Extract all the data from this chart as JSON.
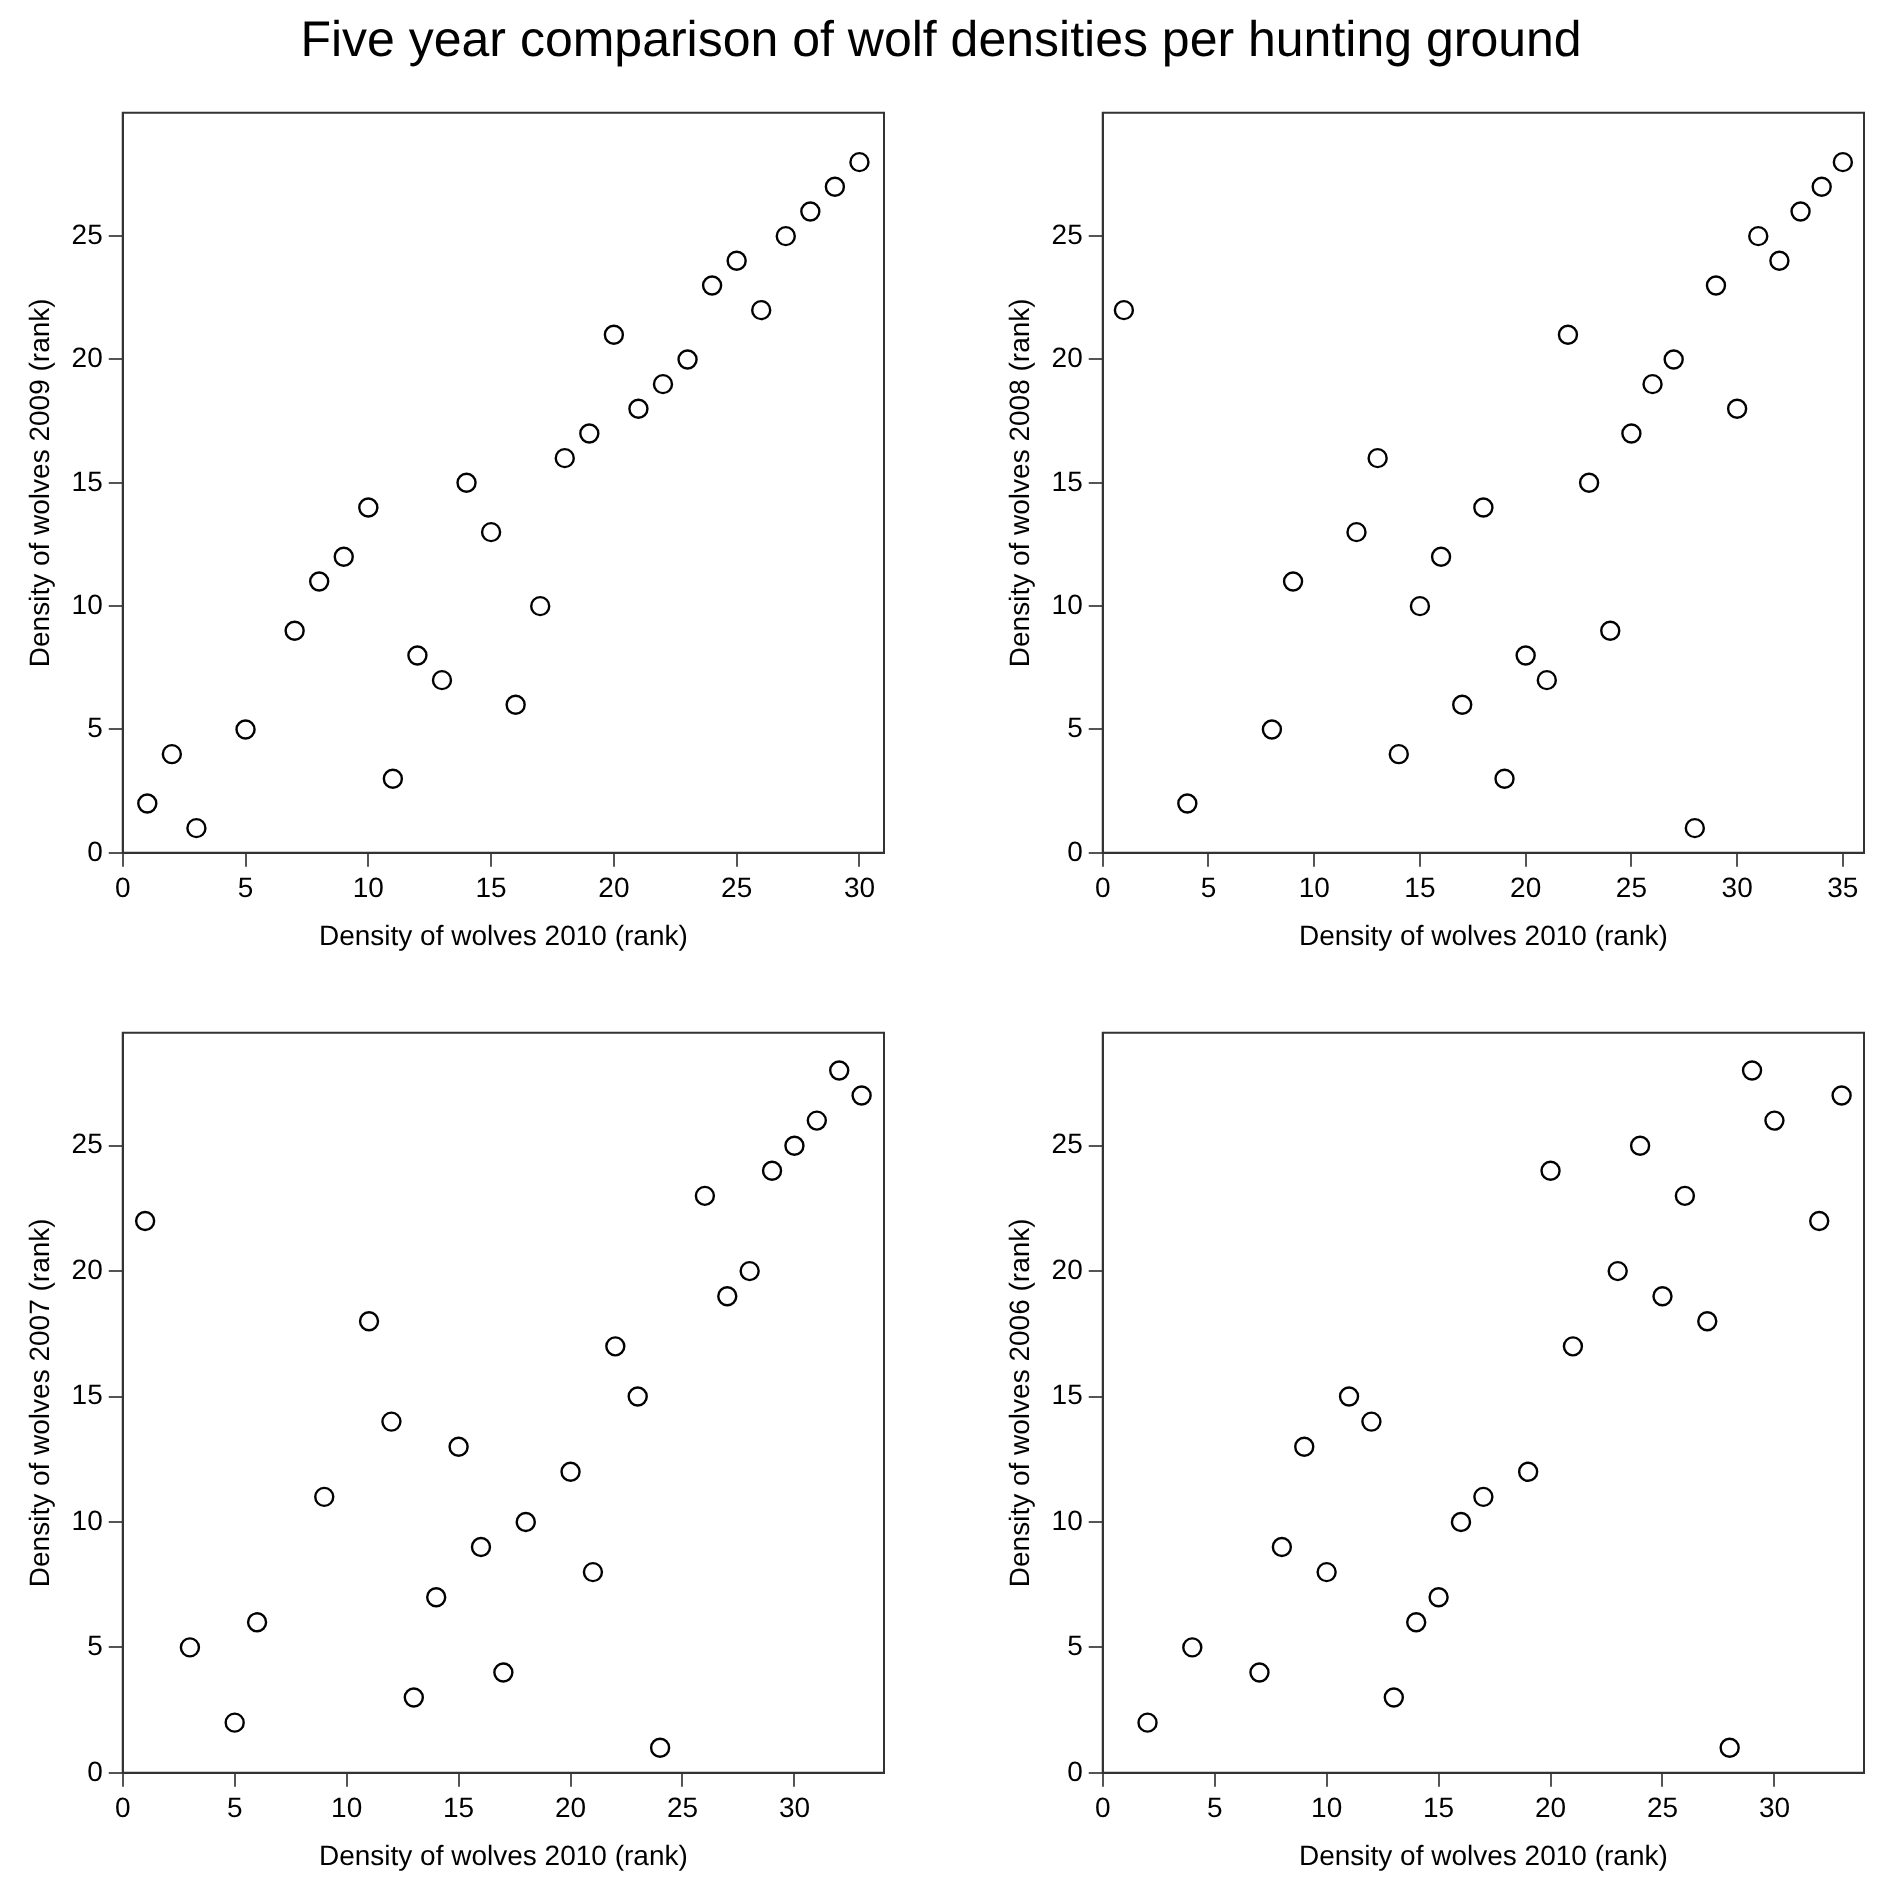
{
  "chart_data": [
    {
      "type": "scatter",
      "title": "Five year comparison of wolf densities per hunting ground",
      "xlabel": "Density of wolves 2010 (rank)",
      "ylabel": "Density of wolves 2009 (rank)",
      "marker": "circle",
      "grid": false,
      "legend": false,
      "x": [
        1,
        2,
        3,
        5,
        7,
        8,
        9,
        10,
        11,
        12,
        13,
        14,
        15,
        16,
        17,
        18,
        19,
        20,
        21,
        22,
        23,
        24,
        25,
        26,
        27,
        28,
        29,
        30
      ],
      "series": [
        {
          "color": "#000000",
          "values": [
            2,
            4,
            1,
            5,
            9,
            11,
            12,
            14,
            3,
            8,
            7,
            15,
            13,
            6,
            10,
            16,
            17,
            21,
            18,
            19,
            20,
            23,
            24,
            22,
            25,
            26,
            27,
            28
          ]
        }
      ],
      "xlim": [
        0,
        31
      ],
      "xticks": [
        0,
        5,
        10,
        15,
        20,
        25,
        30
      ],
      "ylim": [
        0,
        30
      ],
      "yticks": [
        0,
        5,
        10,
        15,
        20,
        25
      ]
    },
    {
      "type": "scatter",
      "xlabel": "Density of wolves 2010 (rank)",
      "ylabel": "Density of wolves 2008 (rank)",
      "marker": "circle",
      "grid": false,
      "legend": false,
      "x": [
        1,
        4,
        8,
        9,
        12,
        13,
        14,
        15,
        16,
        17,
        18,
        19,
        20,
        21,
        22,
        23,
        24,
        25,
        26,
        27,
        28,
        29,
        30,
        31,
        32,
        33,
        34,
        35
      ],
      "series": [
        {
          "color": "#000000",
          "values": [
            22,
            2,
            5,
            11,
            13,
            16,
            4,
            10,
            12,
            6,
            14,
            3,
            8,
            7,
            21,
            15,
            9,
            17,
            19,
            20,
            1,
            23,
            18,
            25,
            24,
            26,
            27,
            28
          ]
        }
      ],
      "xlim": [
        0,
        36
      ],
      "xticks": [
        0,
        5,
        10,
        15,
        20,
        25,
        30,
        35
      ],
      "ylim": [
        0,
        30
      ],
      "yticks": [
        0,
        5,
        10,
        15,
        20,
        25
      ]
    },
    {
      "type": "scatter",
      "xlabel": "Density of wolves 2010 (rank)",
      "ylabel": "Density of wolves 2007 (rank)",
      "marker": "circle",
      "grid": false,
      "legend": false,
      "x": [
        1,
        3,
        5,
        6,
        9,
        11,
        12,
        13,
        14,
        15,
        16,
        17,
        18,
        20,
        21,
        22,
        23,
        24,
        26,
        27,
        28,
        29,
        30,
        31,
        32,
        33
      ],
      "series": [
        {
          "color": "#000000",
          "values": [
            22,
            5,
            2,
            6,
            11,
            18,
            14,
            3,
            7,
            13,
            9,
            4,
            10,
            12,
            8,
            17,
            15,
            1,
            23,
            19,
            20,
            24,
            25,
            26,
            28,
            27
          ]
        }
      ],
      "xlim": [
        0,
        34
      ],
      "xticks": [
        0,
        5,
        10,
        15,
        20,
        25,
        30
      ],
      "ylim": [
        0,
        29.5
      ],
      "yticks": [
        0,
        5,
        10,
        15,
        20,
        25
      ]
    },
    {
      "type": "scatter",
      "xlabel": "Density of wolves 2010 (rank)",
      "ylabel": "Density of wolves 2006 (rank)",
      "marker": "circle",
      "grid": false,
      "legend": false,
      "x": [
        2,
        4,
        7,
        8,
        9,
        10,
        11,
        12,
        13,
        14,
        15,
        16,
        17,
        19,
        20,
        21,
        23,
        24,
        25,
        26,
        27,
        28,
        29,
        30,
        32,
        33
      ],
      "series": [
        {
          "color": "#000000",
          "values": [
            2,
            5,
            4,
            9,
            13,
            8,
            15,
            14,
            3,
            6,
            7,
            10,
            11,
            12,
            24,
            17,
            20,
            25,
            19,
            23,
            18,
            1,
            28,
            26,
            22,
            27
          ]
        }
      ],
      "xlim": [
        0,
        34
      ],
      "xticks": [
        0,
        5,
        10,
        15,
        20,
        25,
        30
      ],
      "ylim": [
        0,
        29.5
      ],
      "yticks": [
        0,
        5,
        10,
        15,
        20,
        25
      ]
    }
  ]
}
